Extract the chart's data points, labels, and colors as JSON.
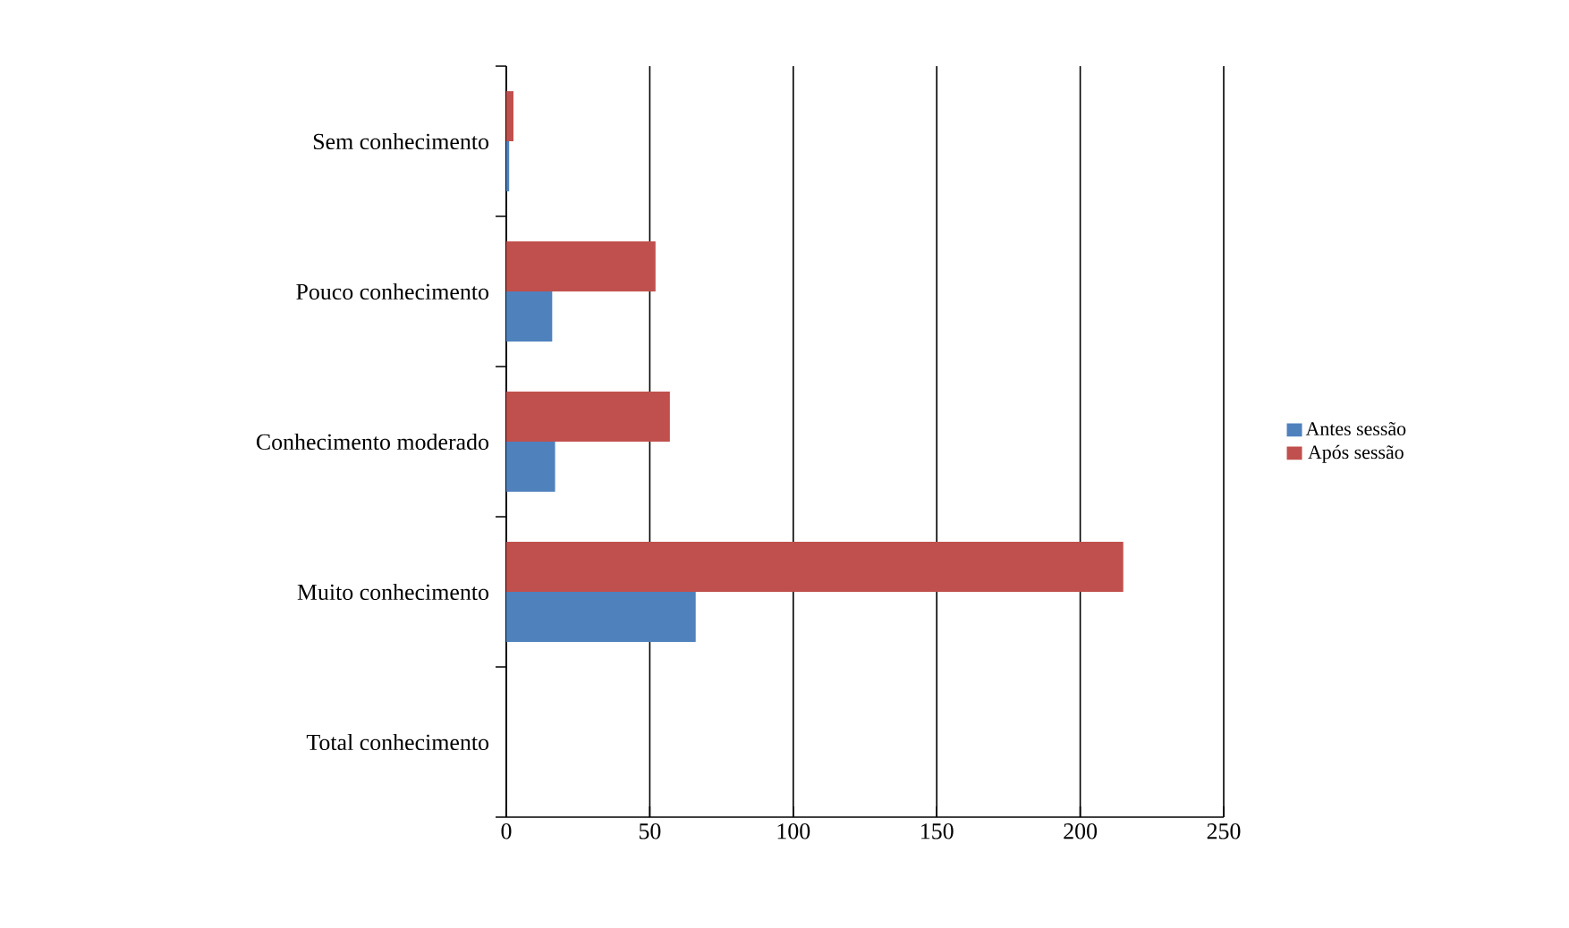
{
  "chart_data": {
    "type": "bar",
    "orientation": "horizontal",
    "categories": [
      "Sem conhecimento",
      "Pouco conhecimento",
      "Conhecimento moderado",
      "Muito conhecimento",
      "Total  conhecimento"
    ],
    "series": [
      {
        "name": "Antes sessão",
        "color": "#4f81bd",
        "values": [
          1,
          16,
          17,
          66,
          0
        ]
      },
      {
        "name": "Após sessão",
        "color": "#c0504d",
        "values": [
          2.5,
          52,
          57,
          215,
          0
        ]
      }
    ],
    "xlim": [
      0,
      250
    ],
    "xticks": [
      0,
      50,
      100,
      150,
      200,
      250
    ],
    "grid": "x",
    "legend": "right"
  }
}
